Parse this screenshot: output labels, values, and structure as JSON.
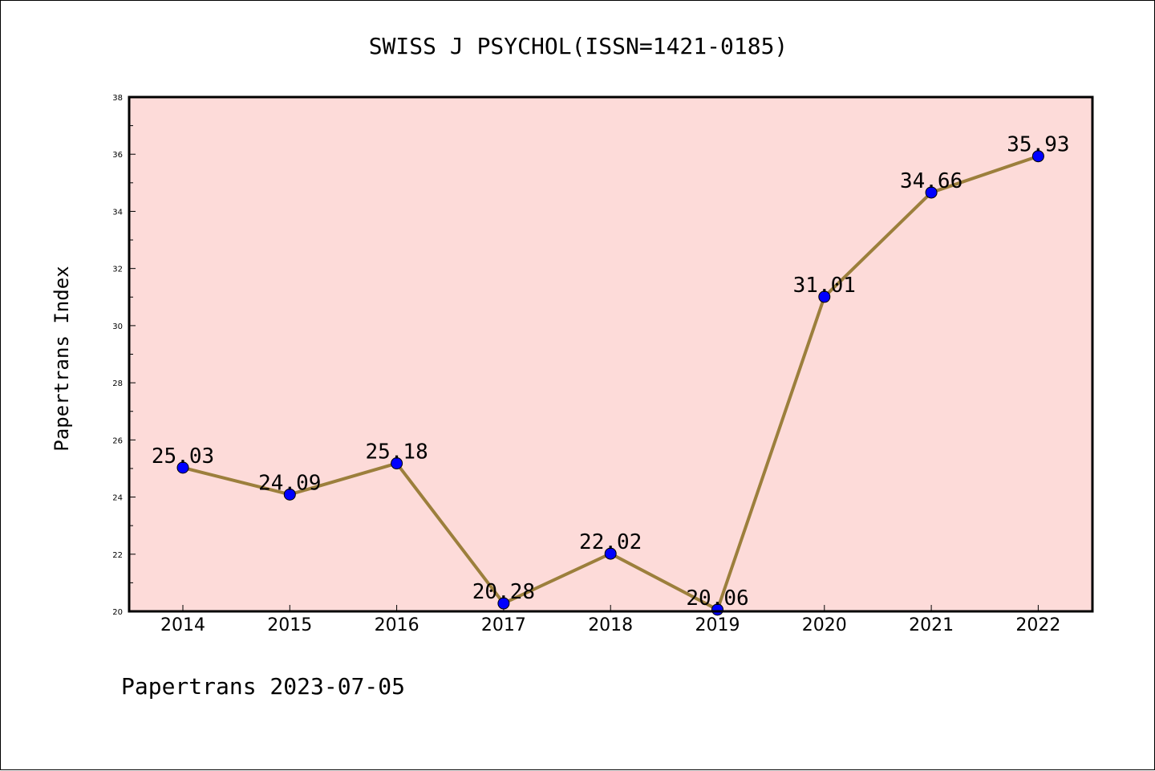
{
  "chart_data": {
    "type": "line",
    "title": "SWISS J PSYCHOL(ISSN=1421-0185)",
    "ylabel": "Papertrans Index",
    "xlabel": "",
    "footer": "Papertrans 2023-07-05",
    "categories": [
      "2014",
      "2015",
      "2016",
      "2017",
      "2018",
      "2019",
      "2020",
      "2021",
      "2022"
    ],
    "values": [
      25.03,
      24.09,
      25.18,
      20.28,
      22.02,
      20.06,
      31.01,
      34.66,
      35.93
    ],
    "value_labels": [
      "25.03",
      "24.09",
      "25.18",
      "20.28",
      "22.02",
      "20.06",
      "31.01",
      "34.66",
      "35.93"
    ],
    "ylim": [
      20,
      38
    ],
    "yticks": [
      "20",
      "22",
      "24",
      "26",
      "28",
      "30",
      "32",
      "34",
      "36",
      "38"
    ],
    "grid": false,
    "colors": {
      "plot_background": "#fddbd9",
      "line": "#9c7f3c",
      "marker": "#0000ff"
    }
  }
}
